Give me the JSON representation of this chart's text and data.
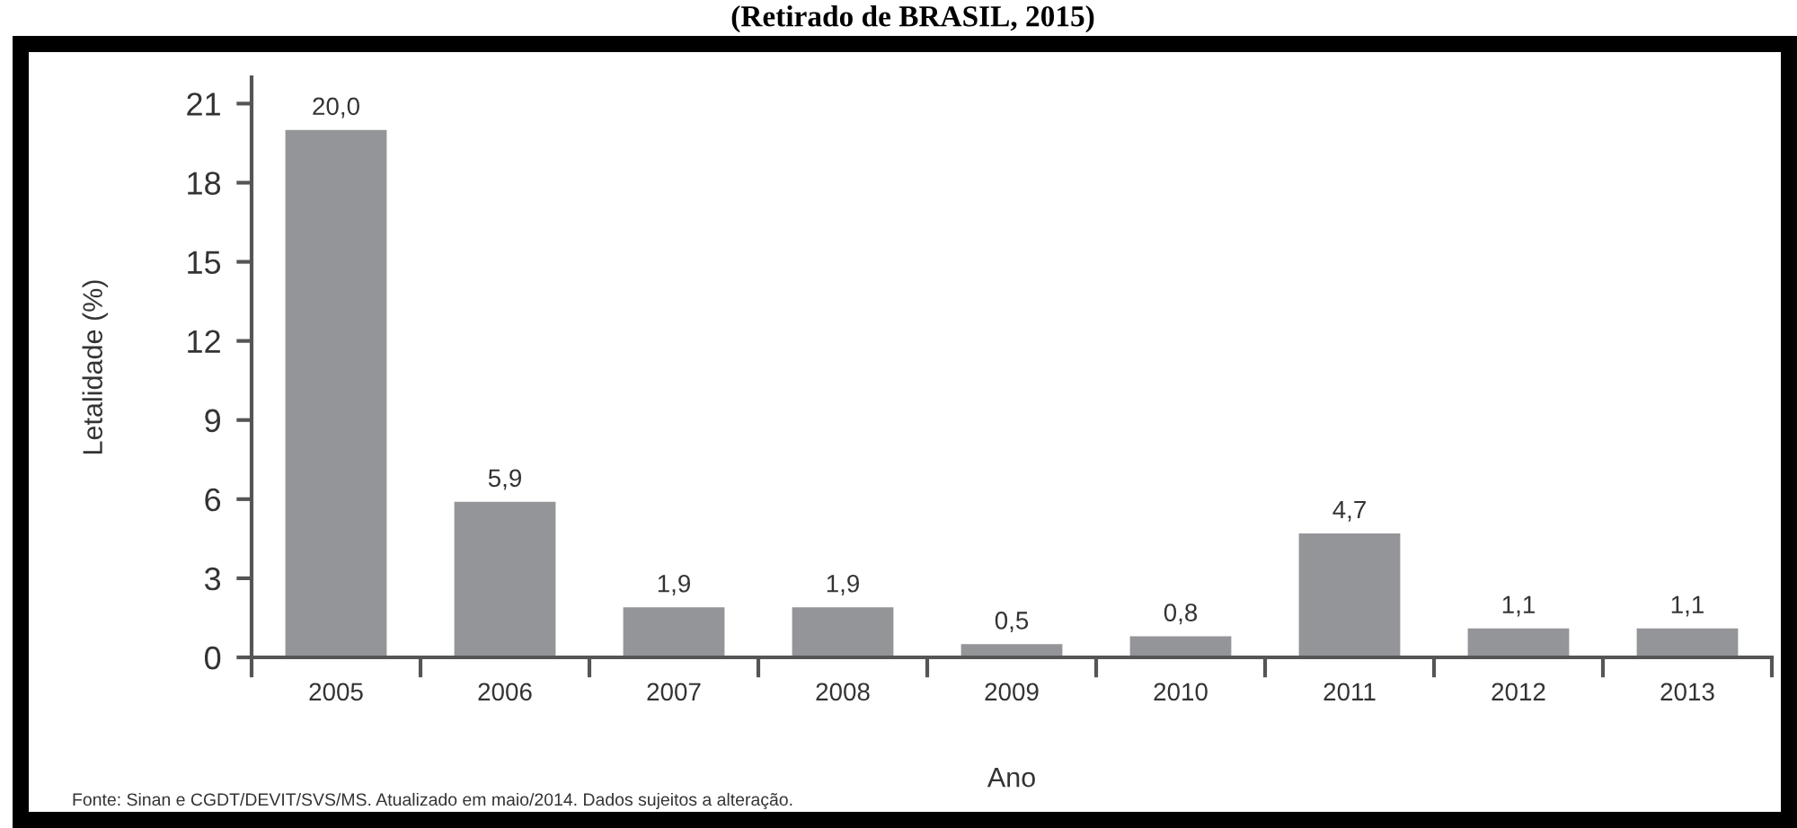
{
  "chart_data": {
    "type": "bar",
    "title": "(Retirado de BRASIL, 2015)",
    "xlabel": "Ano",
    "ylabel": "Letalidade (%)",
    "categories": [
      "2005",
      "2006",
      "2007",
      "2008",
      "2009",
      "2010",
      "2011",
      "2012",
      "2013"
    ],
    "values": [
      20.0,
      5.9,
      1.9,
      1.9,
      0.5,
      0.8,
      4.7,
      1.1,
      1.1
    ],
    "value_labels": [
      "20,0",
      "5,9",
      "1,9",
      "1,9",
      "0,5",
      "0,8",
      "4,7",
      "1,1",
      "1,1"
    ],
    "color": "#939598",
    "ylim": [
      0,
      22
    ],
    "yticks": [
      0,
      3,
      6,
      9,
      12,
      15,
      18,
      21
    ],
    "annotations": [
      "Fonte: Sinan e CGDT/DEVIT/SVS/MS. Atualizado em maio/2014. Dados sujeitos a alteração."
    ]
  }
}
